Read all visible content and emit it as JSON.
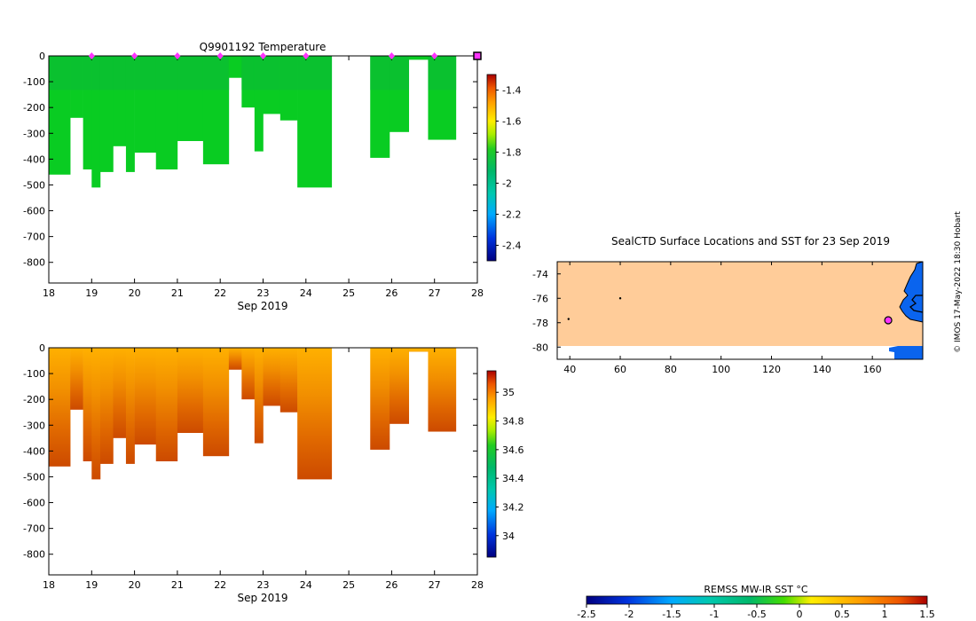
{
  "temperature_panel": {
    "title": "Q9901192  Temperature",
    "xlabel": "Sep 2019",
    "x_ticks": [
      18,
      19,
      20,
      21,
      22,
      23,
      24,
      25,
      26,
      27,
      28
    ],
    "y_ticks": [
      0,
      -100,
      -200,
      -300,
      -400,
      -500,
      -600,
      -700,
      -800
    ],
    "colorbar_ticks": [
      -1.4,
      -1.6,
      -1.8,
      -2,
      -2.2,
      -2.4
    ],
    "colorbar_range": [
      -2.5,
      -1.3
    ],
    "colors": {
      "main": "#09cc22",
      "dark": "#0bb83a",
      "marker": "#ff33ff"
    }
  },
  "salinity_panel": {
    "xlabel": "Sep 2019",
    "x_ticks": [
      18,
      19,
      20,
      21,
      22,
      23,
      24,
      25,
      26,
      27,
      28
    ],
    "y_ticks": [
      0,
      -100,
      -200,
      -300,
      -400,
      -500,
      -600,
      -700,
      -800
    ],
    "colorbar_ticks": [
      35,
      34.8,
      34.6,
      34.4,
      34.2,
      34
    ],
    "colorbar_range": [
      33.85,
      35.15
    ],
    "colors": {
      "light": "#ffb000",
      "mid": "#f08a00",
      "deep": "#d85800"
    }
  },
  "map_panel": {
    "title": "SealCTD Surface Locations and SST for 23 Sep 2019",
    "x_ticks": [
      40,
      60,
      80,
      100,
      120,
      140,
      160
    ],
    "y_ticks": [
      -74,
      -76,
      -78,
      -80
    ],
    "colors": {
      "ocean": "#ffcc99",
      "land": "#0a64ee",
      "marker": "#ff33ff"
    }
  },
  "credit": "© IMOS 17-May-2022 18:30 Hobart",
  "sst_colorbar": {
    "label": "REMSS MW-IR SST °C",
    "ticks": [
      "-2.5",
      "-2",
      "-1.5",
      "-1",
      "-0.5",
      "0",
      "0.5",
      "1",
      "1.5"
    ]
  },
  "chart_data": [
    {
      "type": "heatmap",
      "title": "Q9901192  Temperature",
      "xlabel": "Sep 2019",
      "ylabel": "",
      "xlim": [
        18,
        28
      ],
      "ylim": [
        -880,
        0
      ],
      "value_range": [
        -2.5,
        -1.3
      ],
      "profiles": [
        {
          "t0": 18.0,
          "t1": 18.5,
          "depth": 460
        },
        {
          "t0": 18.5,
          "t1": 18.8,
          "depth": 240
        },
        {
          "t0": 18.8,
          "t1": 19.0,
          "depth": 440
        },
        {
          "t0": 19.0,
          "t1": 19.2,
          "depth": 510
        },
        {
          "t0": 19.2,
          "t1": 19.5,
          "depth": 450
        },
        {
          "t0": 19.5,
          "t1": 19.8,
          "depth": 350
        },
        {
          "t0": 19.8,
          "t1": 20.0,
          "depth": 450
        },
        {
          "t0": 20.0,
          "t1": 20.5,
          "depth": 375
        },
        {
          "t0": 20.5,
          "t1": 21.0,
          "depth": 440
        },
        {
          "t0": 21.0,
          "t1": 21.6,
          "depth": 330
        },
        {
          "t0": 21.6,
          "t1": 22.2,
          "depth": 420
        },
        {
          "t0": 22.2,
          "t1": 22.5,
          "depth": 85
        },
        {
          "t0": 22.5,
          "t1": 22.8,
          "depth": 200
        },
        {
          "t0": 22.8,
          "t1": 23.0,
          "depth": 370
        },
        {
          "t0": 23.0,
          "t1": 23.4,
          "depth": 225
        },
        {
          "t0": 23.4,
          "t1": 23.8,
          "depth": 250
        },
        {
          "t0": 23.8,
          "t1": 24.6,
          "depth": 510
        },
        {
          "t0": 25.5,
          "t1": 25.95,
          "depth": 395
        },
        {
          "t0": 25.95,
          "t1": 26.4,
          "depth": 295
        },
        {
          "t0": 26.4,
          "t1": 26.85,
          "depth": 15
        },
        {
          "t0": 26.85,
          "t1": 27.5,
          "depth": 325
        }
      ],
      "surface_markers": [
        19,
        20,
        21,
        22,
        23,
        24,
        26,
        27,
        28
      ]
    },
    {
      "type": "heatmap",
      "title": "",
      "xlabel": "Sep 2019",
      "ylabel": "",
      "xlim": [
        18,
        28
      ],
      "ylim": [
        -880,
        0
      ],
      "value_range": [
        33.85,
        35.15
      ]
    },
    {
      "type": "scatter",
      "title": "SealCTD Surface Locations and SST for 23 Sep 2019",
      "xlim": [
        35,
        180
      ],
      "ylim": [
        -81,
        -73
      ],
      "points": [
        {
          "lon": 166.3,
          "lat": -77.8,
          "role": "latest"
        },
        {
          "lon": 60.0,
          "lat": -76.0,
          "role": "track"
        },
        {
          "lon": 39.5,
          "lat": -77.7,
          "role": "track"
        }
      ]
    }
  ]
}
